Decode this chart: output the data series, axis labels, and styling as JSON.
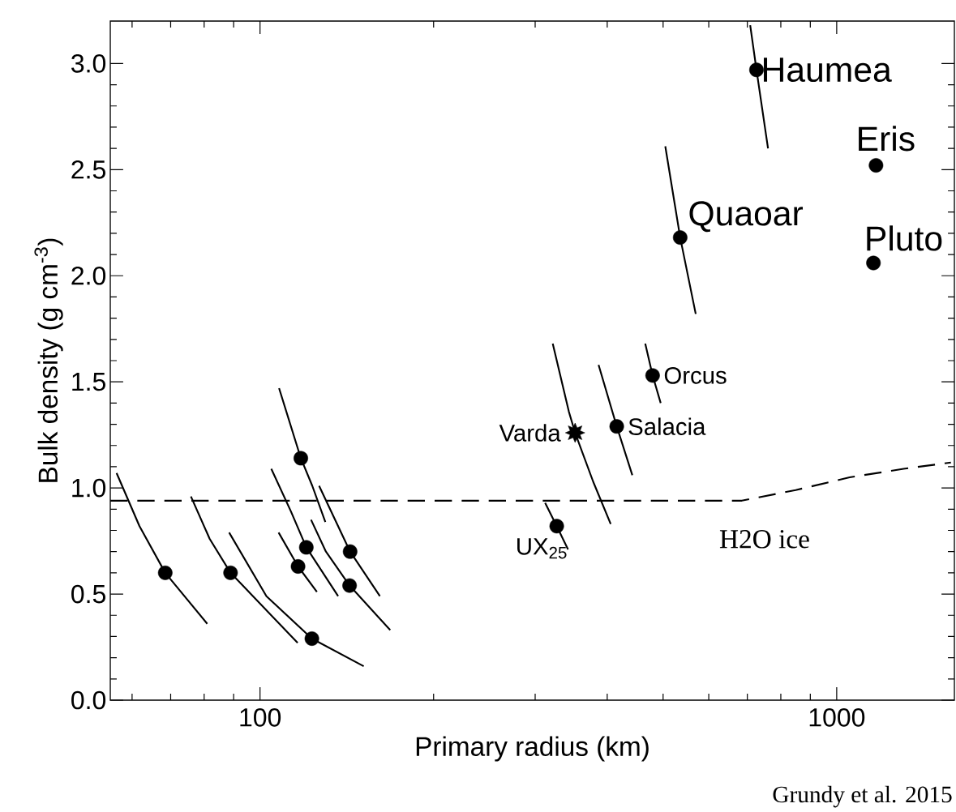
{
  "chart_data": {
    "type": "scatter",
    "xlabel": "Primary radius (km)",
    "ylabel": "Bulk density (g cm$^{-3}$)",
    "log": "x",
    "xlim": [
      55,
      1600
    ],
    "ylim": [
      0,
      3.2
    ],
    "xticks": [
      100,
      1000
    ],
    "yticks": [
      {
        "value": 0,
        "label": "0.0"
      },
      {
        "value": 0.5,
        "label": "0.5"
      },
      {
        "value": 1,
        "label": "1.0"
      },
      {
        "value": 1.5,
        "label": "1.5"
      },
      {
        "value": 2,
        "label": "2.0"
      },
      {
        "value": 2.5,
        "label": "2.5"
      },
      {
        "value": 3,
        "label": "3.0"
      }
    ],
    "series": [
      {
        "type": "line",
        "color": "#000000",
        "line_style": "dashed",
        "x": [
          55,
          685,
          849,
          1053,
          1306,
          1578
        ],
        "values": [
          0.94,
          0.94,
          0.99,
          1.05,
          1.09,
          1.12
        ]
      },
      {
        "type": "line",
        "color": "#000000",
        "x": [
          56.4,
          61.8,
          68.5,
          81.0
        ],
        "values": [
          1.07,
          0.82,
          0.6,
          0.36
        ]
      },
      {
        "type": "line",
        "color": "#000000",
        "x": [
          75.9,
          81.8,
          88.9,
          116.2
        ],
        "values": [
          0.96,
          0.76,
          0.6,
          0.27
        ]
      },
      {
        "type": "line",
        "color": "#000000",
        "x": [
          88.4,
          102.6,
          123,
          151.3
        ],
        "values": [
          0.79,
          0.49,
          0.29,
          0.16
        ]
      },
      {
        "type": "line",
        "color": "#000000",
        "x": [
          107.7,
          116.4,
          125.5
        ],
        "values": [
          0.79,
          0.63,
          0.51
        ]
      },
      {
        "type": "line",
        "color": "#000000",
        "x": [
          104.6,
          113.1,
          120.3,
          136.6
        ],
        "values": [
          1.09,
          0.89,
          0.72,
          0.49
        ]
      },
      {
        "type": "line",
        "color": "#000000",
        "x": [
          107.9,
          117.7,
          123.2,
          129.8
        ],
        "values": [
          1.47,
          1.14,
          1.01,
          0.84
        ]
      },
      {
        "type": "line",
        "color": "#000000",
        "x": [
          126.6,
          143.3,
          161.4
        ],
        "values": [
          1.01,
          0.7,
          0.49
        ]
      },
      {
        "type": "line",
        "color": "#000000",
        "x": [
          122.6,
          130.1,
          143,
          168.2
        ],
        "values": [
          0.85,
          0.7,
          0.54,
          0.33
        ]
      },
      {
        "type": "line",
        "color": "#000000",
        "x": [
          312.2,
          327,
          342.1
        ],
        "values": [
          0.93,
          0.82,
          0.71
        ]
      },
      {
        "type": "line",
        "color": "#000000",
        "x": [
          321.8,
          343.2,
          351.9,
          378.2,
          405.6
        ],
        "values": [
          1.68,
          1.36,
          1.26,
          1.03,
          0.83
        ]
      },
      {
        "type": "line",
        "color": "#000000",
        "x": [
          386.5,
          415.5,
          442.2
        ],
        "values": [
          1.58,
          1.29,
          1.06
        ]
      },
      {
        "type": "line",
        "color": "#000000",
        "x": [
          465.6,
          479.5,
          495.2
        ],
        "values": [
          1.68,
          1.53,
          1.4
        ]
      },
      {
        "type": "line",
        "color": "#000000",
        "x": [
          504.4,
          535.3,
          569.6
        ],
        "values": [
          2.61,
          2.18,
          1.82
        ]
      },
      {
        "type": "line",
        "color": "#000000",
        "x": [
          708,
          726,
          760.3
        ],
        "values": [
          3.18,
          2.97,
          2.6
        ]
      },
      {
        "type": "scatter",
        "marker": "circle",
        "color": "#000000",
        "x": [
          68.5,
          88.9,
          123,
          116.4,
          120.3,
          117.7,
          143.3,
          143,
          327,
          415.5,
          479.5,
          535.3,
          726,
          1170,
          1158
        ],
        "values": [
          0.6,
          0.6,
          0.29,
          0.63,
          0.72,
          1.14,
          0.7,
          0.54,
          0.82,
          1.29,
          1.53,
          2.18,
          2.97,
          2.52,
          2.06
        ]
      },
      {
        "type": "scatter",
        "marker": "star",
        "color": "#000000",
        "x": [
          351.9
        ],
        "values": [
          1.26
        ]
      }
    ],
    "annotations": [
      {
        "text": "Haumea",
        "x": 726,
        "y": 2.97
      },
      {
        "text": "Eris",
        "x": 1170,
        "y": 2.52
      },
      {
        "text": "Quaoar",
        "x": 535.3,
        "y": 2.18
      },
      {
        "text": "Pluto",
        "x": 1158,
        "y": 2.06
      },
      {
        "text": "Orcus",
        "x": 479.5,
        "y": 1.53
      },
      {
        "text": "Salacia",
        "x": 415.5,
        "y": 1.29
      },
      {
        "text": "Varda",
        "x": 351.9,
        "y": 1.26
      },
      {
        "text": "UX$_{25}$",
        "x": 327,
        "y": 0.82
      },
      {
        "text": "H2O ice",
        "x": 750,
        "y": 0.94
      },
      "Grundy et al. 2015"
    ]
  }
}
